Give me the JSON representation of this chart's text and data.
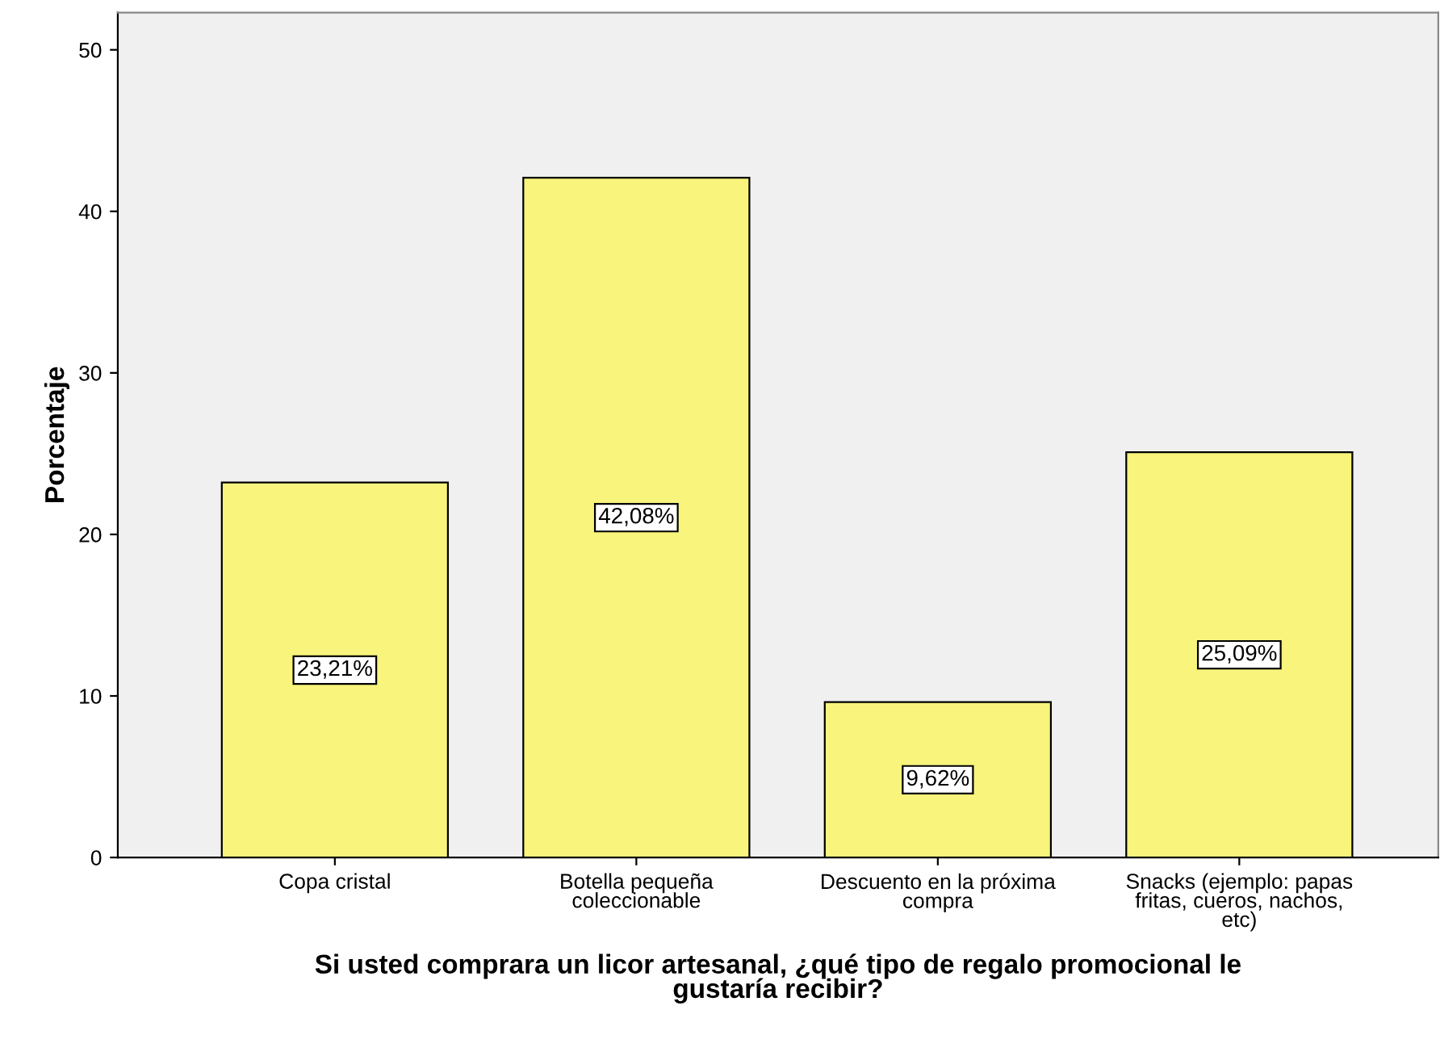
{
  "chart_data": {
    "type": "bar",
    "xlabel": "Si usted comprara un licor artesanal, ¿qué tipo de regalo promocional le\ngustaría recibir?",
    "ylabel": "Porcentaje",
    "categories": [
      "Copa cristal",
      "Botella pequeña\ncoleccionable",
      "Descuento en la próxima\ncompra",
      "Snacks (ejemplo: papas\nfritas, cueros, nachos,\netc)"
    ],
    "values": [
      23.21,
      42.08,
      9.62,
      25.09
    ],
    "value_labels": [
      "23,21%",
      "42,08%",
      "9,62%",
      "25,09%"
    ],
    "color": "#f8f47c",
    "ylim": [
      0,
      52.3
    ],
    "yticks": [
      0,
      10,
      20,
      30,
      40,
      50
    ],
    "grid": false,
    "legend": false
  }
}
